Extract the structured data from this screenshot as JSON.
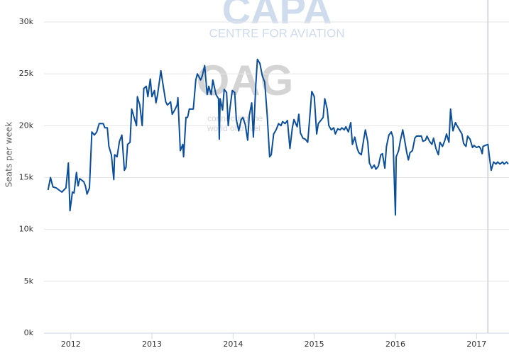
{
  "watermark": {
    "brand": "CAPA",
    "tagline": "CENTRE FOR AVIATION",
    "logo": "OAG",
    "slogan_lines": [
      "connecting the",
      "world of travel"
    ]
  },
  "chart_data": {
    "type": "line",
    "y_label": "Seats per week",
    "color": "#0b4f9c",
    "grid": true,
    "reference_line_x": 2017.14,
    "xlim": [
      2011.67,
      2017.4
    ],
    "xticks": [
      2012,
      2013,
      2014,
      2015,
      2016,
      2017
    ],
    "ylim": [
      0,
      30000
    ],
    "yticks": [
      {
        "value": 0,
        "label": "0k"
      },
      {
        "value": 5000,
        "label": "5k"
      },
      {
        "value": 10000,
        "label": "10k"
      },
      {
        "value": 15000,
        "label": "15k"
      },
      {
        "value": 20000,
        "label": "20k"
      },
      {
        "value": 25000,
        "label": "25k"
      },
      {
        "value": 30000,
        "label": "30k"
      }
    ],
    "x": [
      2011.72,
      2011.75,
      2011.78,
      2011.82,
      2011.89,
      2011.94,
      2011.97,
      2011.99,
      2012.02,
      2012.04,
      2012.07,
      2012.09,
      2012.11,
      2012.16,
      2012.18,
      2012.2,
      2012.23,
      2012.26,
      2012.29,
      2012.32,
      2012.35,
      2012.4,
      2012.42,
      2012.45,
      2012.47,
      2012.5,
      2012.53,
      2012.54,
      2012.57,
      2012.6,
      2012.63,
      2012.66,
      2012.68,
      2012.7,
      2012.73,
      2012.75,
      2012.78,
      2012.81,
      2012.82,
      2012.85,
      2012.88,
      2012.9,
      2012.93,
      2012.95,
      2012.98,
      2013.0,
      2013.03,
      2013.05,
      2013.07,
      2013.11,
      2013.14,
      2013.17,
      2013.19,
      2013.23,
      2013.25,
      2013.28,
      2013.31,
      2013.32,
      2013.35,
      2013.38,
      2013.39,
      2013.42,
      2013.44,
      2013.46,
      2013.51,
      2013.54,
      2013.56,
      2013.6,
      2013.62,
      2013.65,
      2013.68,
      2013.7,
      2013.73,
      2013.75,
      2013.79,
      2013.82,
      2013.83,
      2013.84,
      2013.87,
      2013.89,
      2013.92,
      2013.94,
      2013.96,
      2013.99,
      2014.02,
      2014.04,
      2014.07,
      2014.1,
      2014.12,
      2014.15,
      2014.18,
      2014.2,
      2014.23,
      2014.25,
      2014.28,
      2014.3,
      2014.33,
      2014.36,
      2014.39,
      2014.42,
      2014.45,
      2014.47,
      2014.5,
      2014.53,
      2014.56,
      2014.59,
      2014.61,
      2014.64,
      2014.67,
      2014.7,
      2014.73,
      2014.75,
      2014.79,
      2014.81,
      2014.83,
      2014.86,
      2014.89,
      2014.92,
      2014.95,
      2014.97,
      2015.0,
      2015.03,
      2015.05,
      2015.08,
      2015.11,
      2015.13,
      2015.16,
      2015.18,
      2015.21,
      2015.24,
      2015.26,
      2015.29,
      2015.32,
      2015.34,
      2015.37,
      2015.39,
      2015.42,
      2015.45,
      2015.47,
      2015.5,
      2015.53,
      2015.55,
      2015.58,
      2015.61,
      2015.63,
      2015.66,
      2015.68,
      2015.71,
      2015.74,
      2015.76,
      2015.79,
      2015.82,
      2015.84,
      2015.87,
      2015.89,
      2015.92,
      2015.95,
      2015.97,
      2016.0,
      2016.01,
      2016.04,
      2016.06,
      2016.09,
      2016.11,
      2016.14,
      2016.16,
      2016.18,
      2016.21,
      2016.24,
      2016.26,
      2016.29,
      2016.32,
      2016.34,
      2016.37,
      2016.39,
      2016.42,
      2016.45,
      2016.47,
      2016.5,
      2016.53,
      2016.55,
      2016.58,
      2016.61,
      2016.63,
      2016.66,
      2016.68,
      2016.71,
      2016.74,
      2016.76,
      2016.79,
      2016.82,
      2016.84,
      2016.87,
      2016.89,
      2016.92,
      2016.95,
      2016.97,
      2017.0,
      2017.03,
      2017.05,
      2017.07,
      2017.08,
      2017.11,
      2017.14,
      2017.16,
      2017.18,
      2017.21,
      2017.24,
      2017.26,
      2017.29,
      2017.32,
      2017.34,
      2017.37,
      2017.39
    ],
    "values": [
      13800,
      15000,
      14100,
      14000,
      13600,
      14000,
      16400,
      11800,
      13600,
      13500,
      15500,
      14200,
      14900,
      14600,
      14200,
      13400,
      14000,
      19400,
      19100,
      19400,
      20200,
      20200,
      19800,
      19800,
      18000,
      17200,
      14800,
      17200,
      17000,
      18500,
      19100,
      15700,
      16000,
      18200,
      18400,
      21600,
      20800,
      20000,
      22800,
      22000,
      20000,
      23600,
      23800,
      22800,
      24500,
      22800,
      23400,
      22200,
      23000,
      25300,
      23800,
      22300,
      22000,
      22300,
      21100,
      21500,
      22000,
      22700,
      17600,
      18200,
      17000,
      20800,
      20800,
      21600,
      21600,
      24400,
      25000,
      24400,
      24800,
      25800,
      23000,
      23800,
      23000,
      24400,
      23000,
      22600,
      18700,
      22600,
      21500,
      23500,
      23200,
      20000,
      21600,
      23400,
      23200,
      20600,
      19500,
      20600,
      20800,
      20100,
      18600,
      21000,
      22200,
      18900,
      24000,
      26400,
      26000,
      24800,
      24200,
      21000,
      17000,
      17200,
      19200,
      19600,
      20200,
      20000,
      20400,
      20200,
      20500,
      17800,
      19800,
      20600,
      19900,
      21100,
      19300,
      18800,
      18700,
      18400,
      21300,
      23300,
      22800,
      19200,
      20200,
      20500,
      20800,
      22600,
      21600,
      20000,
      19600,
      19800,
      19200,
      19700,
      19600,
      19800,
      19600,
      19900,
      19400,
      20300,
      18200,
      18900,
      17800,
      17400,
      17200,
      18700,
      19600,
      18400,
      16400,
      15900,
      16200,
      15800,
      16100,
      17200,
      17300,
      15900,
      18000,
      19100,
      19400,
      18900,
      11400,
      17000,
      17600,
      18500,
      19600,
      18800,
      17400,
      16700,
      17400,
      17600,
      18800,
      19000,
      19000,
      19000,
      18500,
      18600,
      19000,
      18500,
      18200,
      18800,
      17800,
      17200,
      18400,
      18000,
      18600,
      19200,
      18400,
      21600,
      19500,
      20300,
      20000,
      19600,
      19200,
      18300,
      18000,
      19000,
      18700,
      17900,
      18100,
      17900,
      18000,
      17800,
      17300,
      18000,
      18100,
      18200,
      16900,
      15700,
      16500,
      16300,
      16500,
      16300,
      16500,
      16300,
      16500,
      16300
    ]
  }
}
